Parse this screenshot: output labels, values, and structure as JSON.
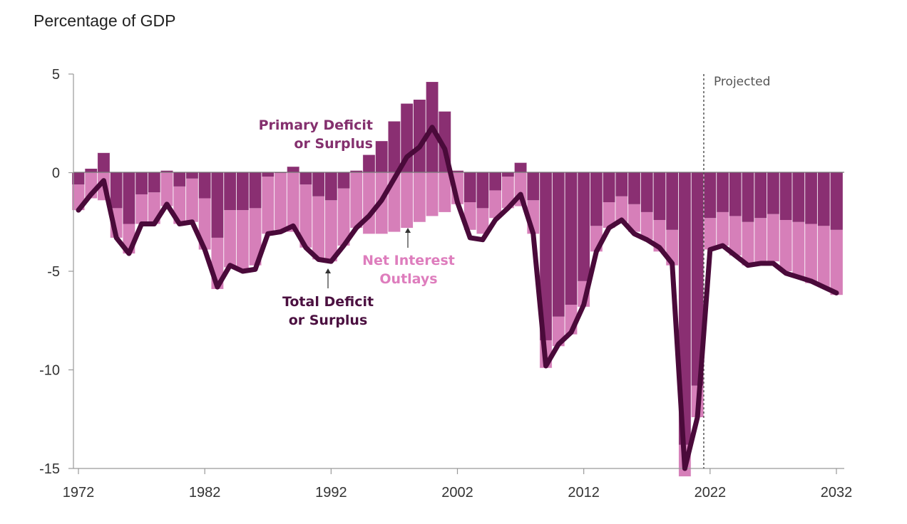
{
  "chart_data": {
    "type": "bar",
    "title": "",
    "ylabel": "Percentage of GDP",
    "xlabel": "",
    "ylim": [
      -15,
      5
    ],
    "xlim": [
      1972,
      2032
    ],
    "y_ticks": [
      "5",
      "0",
      "-5",
      "-10",
      "-15"
    ],
    "x_ticks": [
      "1972",
      "1982",
      "1992",
      "2002",
      "2012",
      "2022",
      "2032"
    ],
    "grid": false,
    "projection_start": 2022,
    "projection_label": "Projected",
    "annotations": {
      "primary": [
        "Primary Deficit",
        "or Surplus"
      ],
      "interest": [
        "Net Interest",
        "Outlays"
      ],
      "total": [
        "Total Deficit",
        "or Surplus"
      ]
    },
    "colors": {
      "primary": "#8a2f72",
      "interest": "#d67fb9",
      "total": "#4a0a3a",
      "primary_label": "#84306e",
      "interest_label": "#de7dbd",
      "total_label": "#4b1040",
      "axis": "#999999"
    },
    "years": [
      1972,
      1973,
      1974,
      1975,
      1976,
      1977,
      1978,
      1979,
      1980,
      1981,
      1982,
      1983,
      1984,
      1985,
      1986,
      1987,
      1988,
      1989,
      1990,
      1991,
      1992,
      1993,
      1994,
      1995,
      1996,
      1997,
      1998,
      1999,
      2000,
      2001,
      2002,
      2003,
      2004,
      2005,
      2006,
      2007,
      2008,
      2009,
      2010,
      2011,
      2012,
      2013,
      2014,
      2015,
      2016,
      2017,
      2018,
      2019,
      2020,
      2021,
      2022,
      2023,
      2024,
      2025,
      2026,
      2027,
      2028,
      2029,
      2030,
      2031,
      2032
    ],
    "series": [
      {
        "name": "Primary Deficit or Surplus",
        "values": [
          -0.6,
          0.2,
          1.0,
          -1.8,
          -2.6,
          -1.1,
          -1.0,
          0.1,
          -0.7,
          -0.3,
          -1.3,
          -3.3,
          -1.9,
          -1.9,
          -1.8,
          -0.2,
          0.0,
          0.3,
          -0.6,
          -1.2,
          -1.4,
          -0.8,
          0.1,
          0.9,
          1.6,
          2.6,
          3.5,
          3.7,
          4.6,
          3.1,
          0.1,
          -1.5,
          -1.8,
          -0.9,
          -0.2,
          0.5,
          -1.4,
          -8.5,
          -7.3,
          -6.7,
          -5.5,
          -2.7,
          -1.5,
          -1.2,
          -1.6,
          -2.0,
          -2.4,
          -2.9,
          -13.8,
          -10.8,
          -2.3,
          -2.0,
          -2.2,
          -2.5,
          -2.3,
          -2.1,
          -2.4,
          -2.5,
          -2.6,
          -2.7,
          -2.9
        ]
      },
      {
        "name": "Net Interest Outlays",
        "values": [
          -1.3,
          -1.3,
          -1.4,
          -1.5,
          -1.5,
          -1.5,
          -1.6,
          -1.7,
          -1.9,
          -2.2,
          -2.6,
          -2.6,
          -2.9,
          -3.0,
          -2.9,
          -2.9,
          -2.9,
          -3.0,
          -3.2,
          -3.2,
          -3.1,
          -2.9,
          -2.8,
          -3.1,
          -3.1,
          -3.0,
          -2.8,
          -2.5,
          -2.2,
          -2.0,
          -1.6,
          -1.4,
          -1.3,
          -1.4,
          -1.6,
          -1.7,
          -1.7,
          -1.4,
          -1.5,
          -1.5,
          -1.3,
          -1.3,
          -1.3,
          -1.3,
          -1.4,
          -1.4,
          -1.6,
          -1.8,
          -1.6,
          -1.6,
          -1.6,
          -1.7,
          -2.0,
          -2.2,
          -2.3,
          -2.4,
          -2.6,
          -2.8,
          -3.0,
          -3.1,
          -3.3
        ]
      },
      {
        "name": "Total Deficit or Surplus",
        "values": [
          -1.9,
          -1.1,
          -0.4,
          -3.3,
          -4.1,
          -2.6,
          -2.6,
          -1.6,
          -2.6,
          -2.5,
          -3.9,
          -5.8,
          -4.7,
          -5.0,
          -4.9,
          -3.1,
          -3.0,
          -2.7,
          -3.8,
          -4.4,
          -4.5,
          -3.7,
          -2.8,
          -2.2,
          -1.4,
          -0.3,
          0.8,
          1.3,
          2.3,
          1.2,
          -1.5,
          -3.3,
          -3.4,
          -2.4,
          -1.8,
          -1.1,
          -3.1,
          -9.8,
          -8.7,
          -8.1,
          -6.7,
          -4.0,
          -2.8,
          -2.4,
          -3.1,
          -3.4,
          -3.8,
          -4.6,
          -15.0,
          -12.4,
          -3.9,
          -3.7,
          -4.2,
          -4.7,
          -4.6,
          -4.6,
          -5.1,
          -5.3,
          -5.5,
          -5.8,
          -6.1
        ]
      }
    ]
  }
}
